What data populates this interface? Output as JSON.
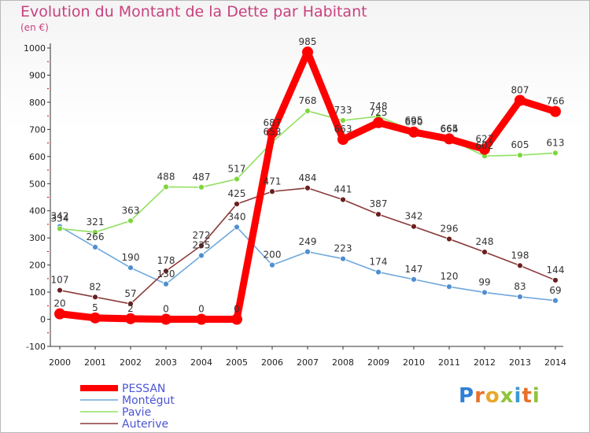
{
  "chart_data": {
    "type": "line",
    "title": "Evolution du Montant de la Dette par Habitant",
    "subtitle": "(en €)",
    "x": [
      "2000",
      "2001",
      "2002",
      "2003",
      "2004",
      "2005",
      "2006",
      "2007",
      "2008",
      "2009",
      "2010",
      "2011",
      "2012",
      "2013",
      "2014"
    ],
    "ylim": [
      -100,
      1000
    ],
    "yticks": [
      -100,
      0,
      100,
      200,
      300,
      400,
      500,
      600,
      700,
      800,
      900,
      1000
    ],
    "grid": false,
    "legend_position": "bottom-left",
    "series": [
      {
        "name": "PESSAN",
        "color": "#ff0000",
        "values": [
          20,
          5,
          2,
          0,
          0,
          0,
          687,
          985,
          663,
          725,
          690,
          665,
          627,
          807,
          766
        ]
      },
      {
        "name": "Montégut",
        "color": "#5b9bd5",
        "values": [
          342,
          266,
          190,
          130,
          235,
          340,
          200,
          249,
          223,
          174,
          147,
          120,
          99,
          83,
          69
        ]
      },
      {
        "name": "Pavie",
        "color": "#7ed63c",
        "values": [
          334,
          321,
          363,
          488,
          487,
          517,
          653,
          768,
          733,
          748,
          695,
          664,
          602,
          605,
          613
        ]
      },
      {
        "name": "Auterive",
        "color": "#7a2a2a",
        "values": [
          107,
          82,
          57,
          178,
          272,
          425,
          471,
          484,
          441,
          387,
          342,
          296,
          248,
          198,
          144
        ]
      }
    ],
    "data_labels": [
      [
        "20",
        "5",
        "2",
        "0",
        "0",
        "0",
        "687",
        "985",
        "663",
        "725",
        "690",
        "665",
        "627",
        "807",
        "766"
      ],
      [
        "342",
        "266",
        "190",
        "130",
        "235",
        "340",
        "200",
        "249",
        "223",
        "174",
        "147",
        "120",
        "99",
        "83",
        "69"
      ],
      [
        "334",
        "321",
        "363",
        "488",
        "487",
        "517",
        "653",
        "768",
        "733",
        "748",
        "695",
        "664",
        "602",
        "605",
        "613"
      ],
      [
        "107",
        "82",
        "57",
        "178",
        "272",
        "425",
        "471",
        "484",
        "441",
        "387",
        "342",
        "296",
        "248",
        "198",
        "144"
      ]
    ]
  },
  "brand": {
    "logo_text": "Proxiti",
    "letter_colors": [
      "#2f7fd6",
      "#e8712b",
      "#e8a82b",
      "#8fc43a",
      "#3a9ad6",
      "#e8712b",
      "#8fc43a"
    ]
  }
}
